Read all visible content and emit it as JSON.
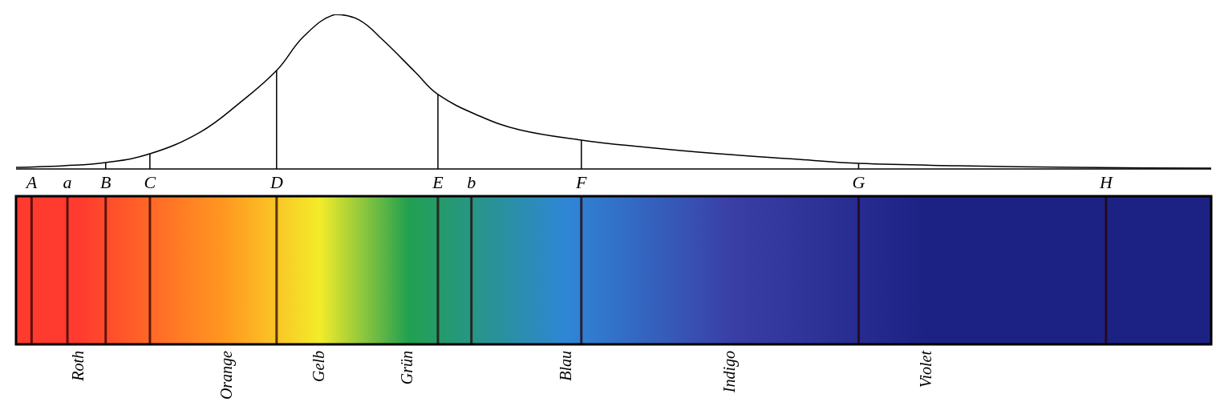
{
  "chart_data": {
    "type": "line",
    "color": "#000000",
    "xlim": [
      0,
      100
    ],
    "ylim": [
      0,
      100
    ],
    "tick_labels": false,
    "grid": false,
    "x": [
      0,
      4.0,
      7.5,
      11.2,
      15.4,
      18.7,
      21.8,
      24.1,
      26.7,
      28.7,
      30.7,
      33.4,
      35.3,
      38.8,
      42.1,
      47.3,
      52.1,
      58.8,
      65.5,
      70.5,
      78.9,
      88.9,
      100
    ],
    "values": [
      1.0,
      2.1,
      4.1,
      9.8,
      23.8,
      42.7,
      63.7,
      86.0,
      100,
      96.4,
      83.4,
      62.7,
      48.2,
      34.2,
      25.4,
      18.7,
      14.5,
      9.8,
      6.2,
      3.6,
      2.1,
      1.0,
      0.5
    ],
    "lines": [
      {
        "label": "A",
        "x": 1.3
      },
      {
        "label": "a",
        "x": 4.3
      },
      {
        "label": "B",
        "x": 7.5,
        "height": 4.1
      },
      {
        "label": "C",
        "x": 11.2,
        "height": 9.8
      },
      {
        "label": "D",
        "x": 21.8,
        "height": 63.7
      },
      {
        "label": "E",
        "x": 35.3,
        "height": 48.2
      },
      {
        "label": "b",
        "x": 38.1
      },
      {
        "label": "F",
        "x": 47.3,
        "height": 18.7
      },
      {
        "label": "G",
        "x": 70.5,
        "height": 3.6
      },
      {
        "label": "H",
        "x": 91.2
      }
    ],
    "color_names": [
      {
        "label": "Roth",
        "x": 5.3,
        "color": "#ff3a2e"
      },
      {
        "label": "Orange",
        "x": 17.7,
        "color": "#ff9a20"
      },
      {
        "label": "Gelb",
        "x": 25.4,
        "color": "#f4ec2a"
      },
      {
        "label": "Grün",
        "x": 32.8,
        "color": "#22a050"
      },
      {
        "label": "Blau",
        "x": 46.1,
        "color": "#2f86d6"
      },
      {
        "label": "Indigo",
        "x": 59.8,
        "color": "#3a3fa6"
      },
      {
        "label": "Violet",
        "x": 76.2,
        "color": "#1c2284"
      }
    ]
  }
}
